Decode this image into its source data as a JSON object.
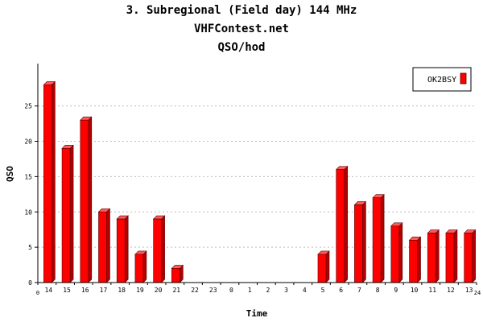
{
  "chart_data": {
    "type": "bar",
    "title": "3. Subregional (Field day) 144 MHz",
    "subtitle": "VHFContest.net",
    "subtitle2": "QSO/hod",
    "xlabel": "Time",
    "ylabel": "QSO",
    "x_axis_start": "0",
    "x_axis_end": "24",
    "categories": [
      "14",
      "15",
      "16",
      "17",
      "18",
      "19",
      "20",
      "21",
      "22",
      "23",
      "0",
      "1",
      "2",
      "3",
      "4",
      "5",
      "6",
      "7",
      "8",
      "9",
      "10",
      "11",
      "12",
      "13"
    ],
    "series": [
      {
        "name": "OK2BSY",
        "values": [
          28,
          19,
          23,
          10,
          9,
          4,
          9,
          2,
          0,
          0,
          0,
          0,
          0,
          0,
          0,
          4,
          16,
          11,
          12,
          8,
          6,
          7,
          7,
          7
        ]
      }
    ],
    "ylim": [
      0,
      31
    ],
    "yticks": [
      0,
      5,
      10,
      15,
      20,
      25
    ],
    "grid": true,
    "legend_position": "top-right",
    "colors": {
      "bar_front": "#ff0000",
      "bar_side": "#b00000",
      "bar_top": "#ff5a5a",
      "outline": "#5a0000"
    }
  }
}
